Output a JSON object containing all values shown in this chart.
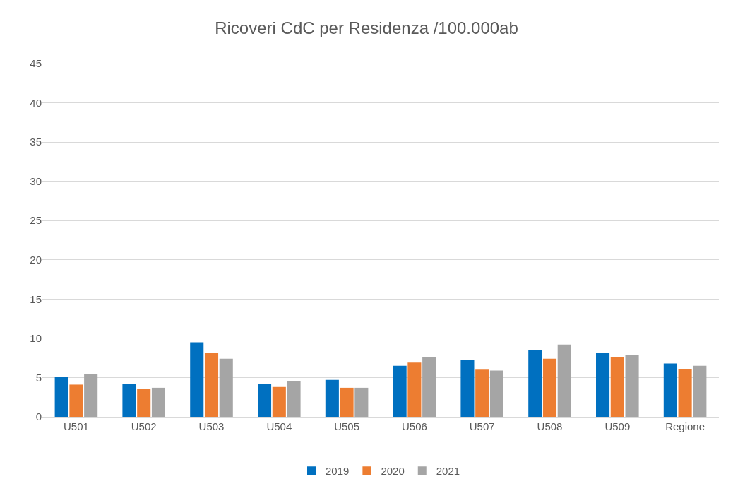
{
  "chart_data": {
    "type": "bar",
    "title": "Ricoveri CdC per Residenza /100.000ab",
    "categories": [
      "U501",
      "U502",
      "U503",
      "U504",
      "U505",
      "U506",
      "U507",
      "U508",
      "U509",
      "Regione"
    ],
    "series": [
      {
        "name": "2019",
        "color": "#0070c0",
        "values": [
          5.1,
          4.2,
          9.5,
          4.2,
          4.7,
          6.5,
          7.3,
          8.5,
          8.1,
          6.8
        ]
      },
      {
        "name": "2020",
        "color": "#ed7d31",
        "values": [
          4.1,
          3.6,
          8.1,
          3.8,
          3.7,
          6.9,
          6.0,
          7.4,
          7.6,
          6.1
        ]
      },
      {
        "name": "2021",
        "color": "#a5a5a5",
        "values": [
          5.5,
          3.7,
          7.4,
          4.5,
          3.7,
          7.6,
          5.9,
          9.2,
          7.9,
          6.5
        ]
      }
    ],
    "ylim": [
      0,
      45
    ],
    "yticks": [
      0,
      5,
      10,
      15,
      20,
      25,
      30,
      35,
      40,
      45
    ],
    "grid": "y",
    "legend": "bottom"
  }
}
